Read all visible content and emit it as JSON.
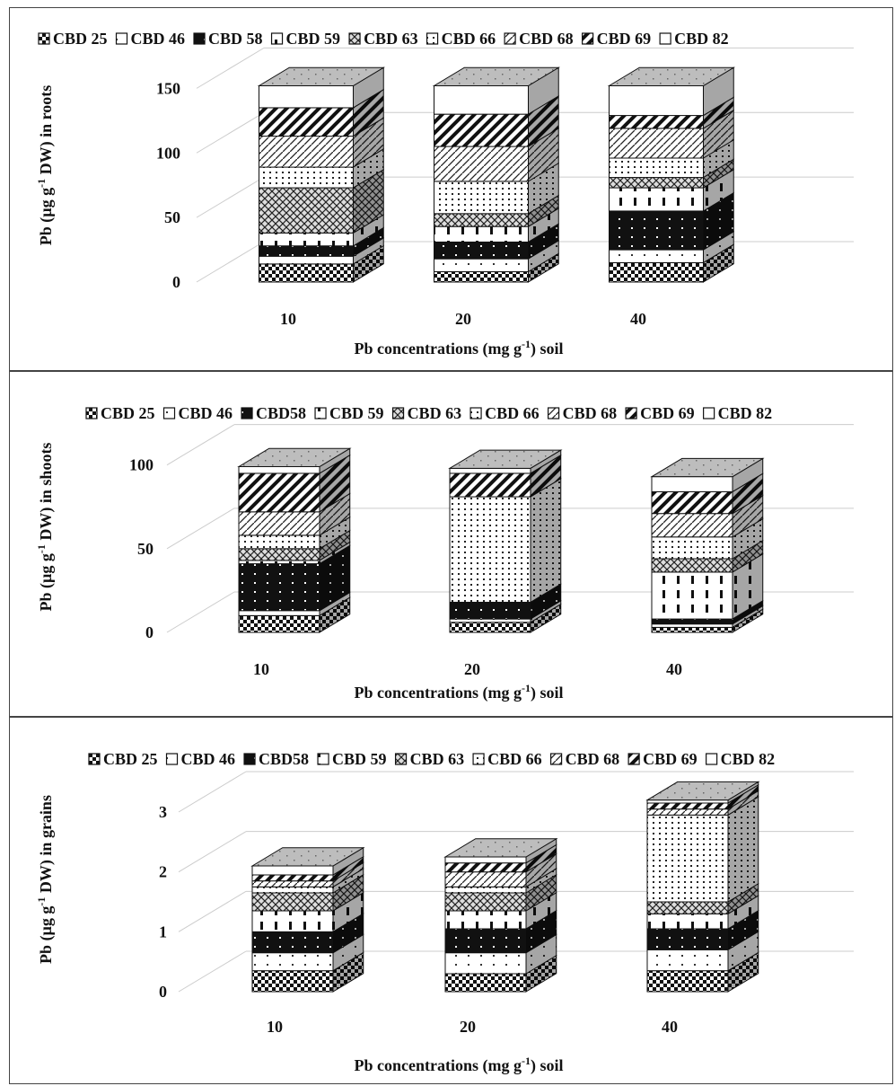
{
  "chart_data": [
    {
      "type": "bar",
      "stacked": true,
      "style": "3d",
      "categories": [
        "10",
        "20",
        "40"
      ],
      "xlabel_parts": {
        "main": "Pb concentrations (mg g",
        "sup": "-1",
        "end": ") soil"
      },
      "ylabel_parts": {
        "main": "Pb (µg g",
        "sup": "-1",
        "end": " DW) in roots"
      },
      "ylim": [
        0,
        160
      ],
      "yticks": [
        "0",
        "50",
        "100",
        "150"
      ],
      "ytick_values": [
        0,
        50,
        100,
        150
      ],
      "grid": true,
      "legend_position": "top",
      "legend": [
        "CBD 25",
        "CBD 46",
        "CBD 58",
        "CBD 59",
        "CBD 63",
        "CBD 66",
        "CBD 68",
        "CBD 69",
        "CBD 82"
      ],
      "series": [
        {
          "name": "CBD 25",
          "values": [
            14,
            8,
            15
          ]
        },
        {
          "name": "CBD 46",
          "values": [
            6,
            10,
            10
          ]
        },
        {
          "name": "CBD 58",
          "values": [
            8,
            13,
            30
          ]
        },
        {
          "name": "CBD 59",
          "values": [
            10,
            12,
            18
          ]
        },
        {
          "name": "CBD 63",
          "values": [
            35,
            10,
            8
          ]
        },
        {
          "name": "CBD 66",
          "values": [
            16,
            25,
            15
          ]
        },
        {
          "name": "CBD 68",
          "values": [
            24,
            27,
            23
          ]
        },
        {
          "name": "CBD 69",
          "values": [
            22,
            25,
            10
          ]
        },
        {
          "name": "CBD 82",
          "values": [
            17,
            22,
            23
          ]
        }
      ]
    },
    {
      "type": "bar",
      "stacked": true,
      "style": "3d",
      "categories": [
        "10",
        "20",
        "40"
      ],
      "xlabel_parts": {
        "main": "Pb concentrations (mg g",
        "sup": "-1",
        "end": ") soil"
      },
      "ylabel_parts": {
        "main": "Pb (µg g",
        "sup": "-1",
        "end": " DW) in shoots"
      },
      "ylim": [
        0,
        110
      ],
      "yticks": [
        "0",
        "50",
        "100"
      ],
      "ytick_values": [
        0,
        50,
        100
      ],
      "grid": true,
      "legend_position": "top",
      "legend": [
        "CBD 25",
        "CBD 46",
        "CBD58",
        "CBD 59",
        "CBD 63",
        "CBD 66",
        "CBD 68",
        "CBD 69",
        "CBD 82"
      ],
      "series": [
        {
          "name": "CBD 25",
          "values": [
            10,
            6,
            3
          ]
        },
        {
          "name": "CBD 46",
          "values": [
            3,
            2,
            2
          ]
        },
        {
          "name": "CBD58",
          "values": [
            28,
            10,
            3
          ]
        },
        {
          "name": "CBD 59",
          "values": [
            2,
            0,
            28
          ]
        },
        {
          "name": "CBD 63",
          "values": [
            7,
            0,
            8
          ]
        },
        {
          "name": "CBD 66",
          "values": [
            8,
            63,
            13
          ]
        },
        {
          "name": "CBD 68",
          "values": [
            14,
            0,
            14
          ]
        },
        {
          "name": "CBD 69",
          "values": [
            23,
            14,
            13
          ]
        },
        {
          "name": "CBD 82",
          "values": [
            4,
            3,
            9
          ]
        }
      ]
    },
    {
      "type": "bar",
      "stacked": true,
      "style": "3d",
      "categories": [
        "10",
        "20",
        "40"
      ],
      "xlabel_parts": {
        "main": "Pb concentrations (mg g",
        "sup": "-1",
        "end": ") soil"
      },
      "ylabel_parts": {
        "main": "Pb (µg g",
        "sup": "-1",
        "end": " DW) in grains"
      },
      "ylim": [
        0,
        3.3
      ],
      "yticks": [
        "0",
        "1",
        "2",
        "3"
      ],
      "ytick_values": [
        0,
        1,
        2,
        3
      ],
      "grid": true,
      "legend_position": "top",
      "legend": [
        "CBD 25",
        "CBD 46",
        "CBD58",
        "CBD 59",
        "CBD 63",
        "CBD 66",
        "CBD 68",
        "CBD 69",
        "CBD 82"
      ],
      "series": [
        {
          "name": "CBD 25",
          "values": [
            0.35,
            0.3,
            0.35
          ]
        },
        {
          "name": "CBD 46",
          "values": [
            0.3,
            0.35,
            0.35
          ]
        },
        {
          "name": "CBD58",
          "values": [
            0.35,
            0.4,
            0.35
          ]
        },
        {
          "name": "CBD 59",
          "values": [
            0.35,
            0.3,
            0.25
          ]
        },
        {
          "name": "CBD 63",
          "values": [
            0.3,
            0.3,
            0.2
          ]
        },
        {
          "name": "CBD 66",
          "values": [
            0.1,
            0.1,
            1.45
          ]
        },
        {
          "name": "CBD 68",
          "values": [
            0.1,
            0.25,
            0.1
          ]
        },
        {
          "name": "CBD 69",
          "values": [
            0.1,
            0.15,
            0.1
          ]
        },
        {
          "name": "CBD 82",
          "values": [
            0.15,
            0.1,
            0.05
          ]
        }
      ]
    }
  ]
}
